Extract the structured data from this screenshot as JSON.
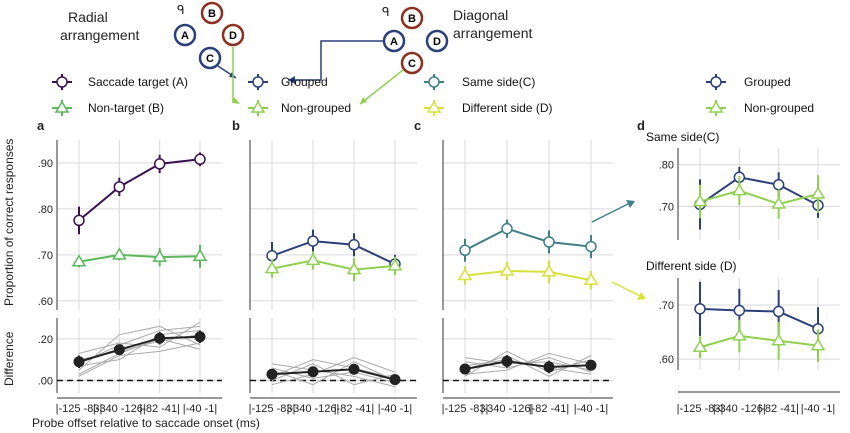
{
  "header": {
    "radial_title_1": "Radial",
    "radial_title_2": "arrangement",
    "diagonal_title_1": "Diagonal",
    "diagonal_title_2": "arrangement",
    "circle_labels": [
      "A",
      "B",
      "C",
      "D"
    ]
  },
  "legend": {
    "a_target": "Saccade target (A)",
    "a_nontarget": "Non-target (B)",
    "b_grouped": "Grouped",
    "b_nongrouped": "Non-grouped",
    "c_same": "Same side(C)",
    "c_different": "Different side (D)",
    "d_grouped": "Grouped",
    "d_nongrouped": "Non-grouped"
  },
  "panel_letters": {
    "a": "a",
    "b": "b",
    "c": "c",
    "d": "d"
  },
  "axis": {
    "ylabel_top": "Proportion of correct responses",
    "ylabel_bottom": "Difference",
    "xlabel": "Probe offset relative to saccade onset (ms)",
    "x_ticks": [
      "|-125 -83|",
      "|-340 -126|",
      "|-82 -41|",
      "|-40 -1|"
    ],
    "y_ticks_main": [
      ".90",
      ".80",
      ".70",
      ".60"
    ],
    "y_ticks_diff": [
      ".20",
      ".00"
    ],
    "y_ticks_d_top": [
      ".80",
      ".70"
    ],
    "y_ticks_d_bottom": [
      ".70",
      ".60"
    ]
  },
  "d_titles": {
    "top": "Same side(C)",
    "bottom": "Different side (D)"
  },
  "colors": {
    "purple": "#3b1050",
    "green_a": "#5cb85c",
    "navy": "#2b3f7a",
    "lime": "#8fd14f",
    "teal": "#3f7f86",
    "yellow": "#d6e23a",
    "brown": "#8b2f1f",
    "grid": "#d9d9d9",
    "thin": "#aaaaaa"
  },
  "chart_data": [
    {
      "panel": "a",
      "type": "line",
      "categories": [
        "|-125 -83|",
        "|-340 -126|",
        "|-82 -41|",
        "|-40 -1|"
      ],
      "ylim": [
        0.58,
        0.95
      ],
      "series": [
        {
          "name": "Saccade target (A)",
          "values": [
            0.775,
            0.848,
            0.898,
            0.908
          ],
          "err": [
            0.03,
            0.02,
            0.02,
            0.015
          ]
        },
        {
          "name": "Non-target (B)",
          "values": [
            0.685,
            0.7,
            0.695,
            0.697
          ],
          "err": [
            0.012,
            0.012,
            0.02,
            0.025
          ]
        }
      ],
      "difference": {
        "ylim": [
          -0.06,
          0.3
        ],
        "values": [
          0.09,
          0.148,
          0.203,
          0.21
        ],
        "err": [
          0.03,
          0.02,
          0.03,
          0.03
        ]
      }
    },
    {
      "panel": "b",
      "type": "line",
      "categories": [
        "|-125 -83|",
        "|-340 -126|",
        "|-82 -41|",
        "|-40 -1|"
      ],
      "ylim": [
        0.58,
        0.95
      ],
      "series": [
        {
          "name": "Grouped",
          "values": [
            0.698,
            0.73,
            0.722,
            0.68
          ],
          "err": [
            0.03,
            0.025,
            0.025,
            0.02
          ]
        },
        {
          "name": "Non-grouped",
          "values": [
            0.67,
            0.688,
            0.668,
            0.676
          ],
          "err": [
            0.02,
            0.02,
            0.025,
            0.02
          ]
        }
      ],
      "difference": {
        "ylim": [
          -0.06,
          0.3
        ],
        "values": [
          0.03,
          0.042,
          0.054,
          0.004
        ],
        "err": [
          0.02,
          0.025,
          0.025,
          0.015
        ]
      }
    },
    {
      "panel": "c",
      "type": "line",
      "categories": [
        "|-125 -83|",
        "|-340 -126|",
        "|-82 -41|",
        "|-40 -1|"
      ],
      "ylim": [
        0.58,
        0.95
      ],
      "series": [
        {
          "name": "Same side(C)",
          "values": [
            0.71,
            0.757,
            0.728,
            0.718
          ],
          "err": [
            0.025,
            0.02,
            0.025,
            0.025
          ]
        },
        {
          "name": "Different side (D)",
          "values": [
            0.655,
            0.665,
            0.663,
            0.645
          ],
          "err": [
            0.02,
            0.02,
            0.025,
            0.02
          ]
        }
      ],
      "difference": {
        "ylim": [
          -0.06,
          0.3
        ],
        "values": [
          0.055,
          0.092,
          0.065,
          0.073
        ],
        "err": [
          0.02,
          0.03,
          0.03,
          0.025
        ]
      }
    },
    {
      "panel": "d-same-side",
      "type": "line",
      "categories": [
        "|-125 -83|",
        "|-340 -126|",
        "|-82 -41|",
        "|-40 -1|"
      ],
      "ylim": [
        0.62,
        0.84
      ],
      "series": [
        {
          "name": "Grouped",
          "values": [
            0.705,
            0.77,
            0.752,
            0.703
          ],
          "err": [
            0.06,
            0.025,
            0.03,
            0.03
          ]
        },
        {
          "name": "Non-grouped",
          "values": [
            0.712,
            0.738,
            0.706,
            0.73
          ],
          "err": [
            0.04,
            0.035,
            0.035,
            0.045
          ]
        }
      ]
    },
    {
      "panel": "d-different-side",
      "type": "line",
      "categories": [
        "|-125 -83|",
        "|-340 -126|",
        "|-82 -41|",
        "|-40 -1|"
      ],
      "ylim": [
        0.58,
        0.75
      ],
      "series": [
        {
          "name": "Grouped",
          "values": [
            0.693,
            0.69,
            0.688,
            0.656
          ],
          "err": [
            0.05,
            0.04,
            0.04,
            0.04
          ]
        },
        {
          "name": "Non-grouped",
          "values": [
            0.622,
            0.643,
            0.634,
            0.625
          ],
          "err": [
            0.02,
            0.03,
            0.035,
            0.03
          ]
        }
      ]
    }
  ]
}
